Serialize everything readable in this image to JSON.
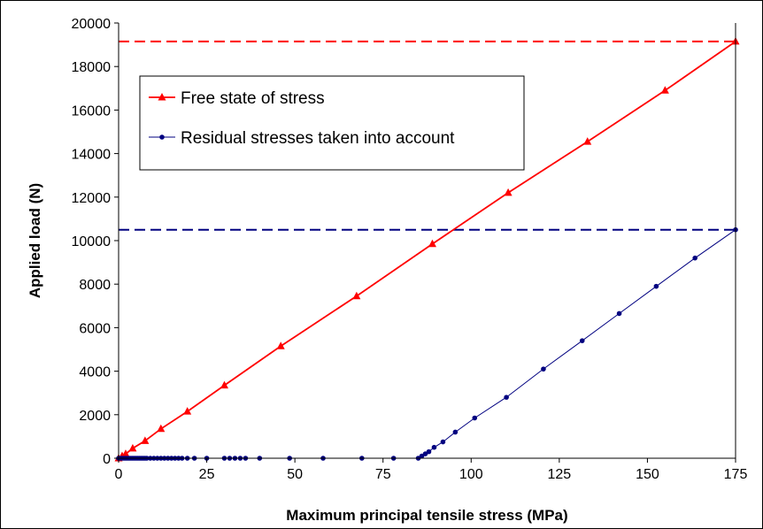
{
  "chart_data": {
    "type": "line",
    "xlabel": "Maximum principal tensile stress (MPa)",
    "ylabel": "Applied load (N)",
    "xlim": [
      0,
      175
    ],
    "ylim": [
      0,
      20000
    ],
    "xticks": [
      0,
      25,
      50,
      75,
      100,
      125,
      150,
      175
    ],
    "yticks": [
      0,
      2000,
      4000,
      6000,
      8000,
      10000,
      12000,
      14000,
      16000,
      18000,
      20000
    ],
    "grid": false,
    "legend_position": "top-left inside plot",
    "reference_lines": [
      {
        "y": 19150,
        "color": "#ff0000",
        "style": "dashed"
      },
      {
        "y": 10500,
        "color": "#000080",
        "style": "dashed"
      }
    ],
    "series": [
      {
        "name": "Free state of stress",
        "color": "#ff0000",
        "marker": "triangle",
        "x": [
          0,
          1,
          2,
          4,
          7.5,
          12,
          19.5,
          30,
          46,
          67.5,
          89,
          110.5,
          133,
          155,
          175
        ],
        "y": [
          0,
          100,
          200,
          450,
          800,
          1350,
          2150,
          3350,
          5150,
          7450,
          9850,
          12200,
          14550,
          16900,
          19150
        ]
      },
      {
        "name": "Residual stresses taken into account",
        "color": "#000080",
        "marker": "circle",
        "x": [
          0,
          0.5,
          1,
          1.5,
          2,
          2.5,
          3,
          3.5,
          4,
          4.5,
          5,
          5.5,
          6,
          6.5,
          7,
          7.5,
          8,
          9,
          10,
          11,
          12,
          13,
          14,
          15,
          16,
          17,
          18,
          19.5,
          21.5,
          25,
          30,
          31.5,
          33,
          34.5,
          36,
          40,
          48.5,
          58,
          69,
          78,
          85,
          86,
          87,
          88,
          89.5,
          92,
          95.5,
          101,
          110,
          120.5,
          131.5,
          142,
          152.5,
          163.5,
          175
        ],
        "y": [
          0,
          0,
          0,
          0,
          0,
          0,
          0,
          0,
          0,
          0,
          0,
          0,
          0,
          0,
          0,
          0,
          0,
          0,
          0,
          0,
          0,
          0,
          0,
          0,
          0,
          0,
          0,
          0,
          0,
          0,
          0,
          0,
          0,
          0,
          0,
          0,
          0,
          0,
          0,
          0,
          0,
          100,
          200,
          300,
          500,
          750,
          1200,
          1850,
          2800,
          4100,
          5400,
          6650,
          7900,
          9200,
          10500
        ]
      }
    ]
  }
}
